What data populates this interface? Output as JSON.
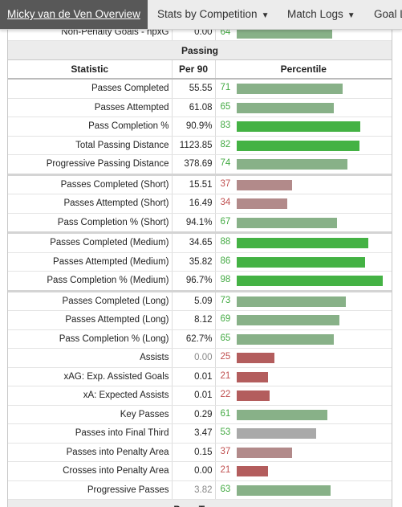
{
  "nav": {
    "items": [
      {
        "label": "Micky van de Ven Overview",
        "active": true
      },
      {
        "label": "Stats by Competition",
        "dropdown": true
      },
      {
        "label": "Match Logs",
        "dropdown": true
      },
      {
        "label": "Goal L",
        "dropdown": false
      }
    ],
    "caret": "▼"
  },
  "top_row": {
    "statistic": "Non-Penalty Goals - npxG",
    "per90": "0.00",
    "percentile": 64
  },
  "sections": {
    "passing": "Passing",
    "pass_types": "Pass Types"
  },
  "columns": {
    "statistic": "Statistic",
    "per90": "Per 90",
    "percentile": "Percentile"
  },
  "rows": [
    {
      "statistic": "Passes Completed",
      "per90": "55.55",
      "percentile": 71
    },
    {
      "statistic": "Passes Attempted",
      "per90": "61.08",
      "percentile": 65
    },
    {
      "statistic": "Pass Completion %",
      "per90": "90.9%",
      "percentile": 83
    },
    {
      "statistic": "Total Passing Distance",
      "per90": "1123.85",
      "percentile": 82
    },
    {
      "statistic": "Progressive Passing Distance",
      "per90": "378.69",
      "percentile": 74
    },
    {
      "statistic": "Passes Completed (Short)",
      "per90": "15.51",
      "percentile": 37,
      "group_start": true
    },
    {
      "statistic": "Passes Attempted (Short)",
      "per90": "16.49",
      "percentile": 34
    },
    {
      "statistic": "Pass Completion % (Short)",
      "per90": "94.1%",
      "percentile": 67
    },
    {
      "statistic": "Passes Completed (Medium)",
      "per90": "34.65",
      "percentile": 88,
      "group_start": true
    },
    {
      "statistic": "Passes Attempted (Medium)",
      "per90": "35.82",
      "percentile": 86
    },
    {
      "statistic": "Pass Completion % (Medium)",
      "per90": "96.7%",
      "percentile": 98
    },
    {
      "statistic": "Passes Completed (Long)",
      "per90": "5.09",
      "percentile": 73,
      "group_start": true
    },
    {
      "statistic": "Passes Attempted (Long)",
      "per90": "8.12",
      "percentile": 69
    },
    {
      "statistic": "Pass Completion % (Long)",
      "per90": "62.7%",
      "percentile": 65
    },
    {
      "statistic": "Assists",
      "per90": "0.00",
      "percentile": 25,
      "muted": true
    },
    {
      "statistic": "xAG: Exp. Assisted Goals",
      "per90": "0.01",
      "percentile": 21
    },
    {
      "statistic": "xA: Expected Assists",
      "per90": "0.01",
      "percentile": 22
    },
    {
      "statistic": "Key Passes",
      "per90": "0.29",
      "percentile": 61
    },
    {
      "statistic": "Passes into Final Third",
      "per90": "3.47",
      "percentile": 53
    },
    {
      "statistic": "Passes into Penalty Area",
      "per90": "0.15",
      "percentile": 37
    },
    {
      "statistic": "Crosses into Penalty Area",
      "per90": "0.00",
      "percentile": 21
    },
    {
      "statistic": "Progressive Passes",
      "per90": "3.82",
      "percentile": 63,
      "muted": true
    }
  ],
  "colors": {
    "high": "#44b244",
    "mid_green": "#88b188",
    "neutral": "#a9a9a9",
    "mid_red": "#b28a8a",
    "low": "#b35d5d"
  }
}
